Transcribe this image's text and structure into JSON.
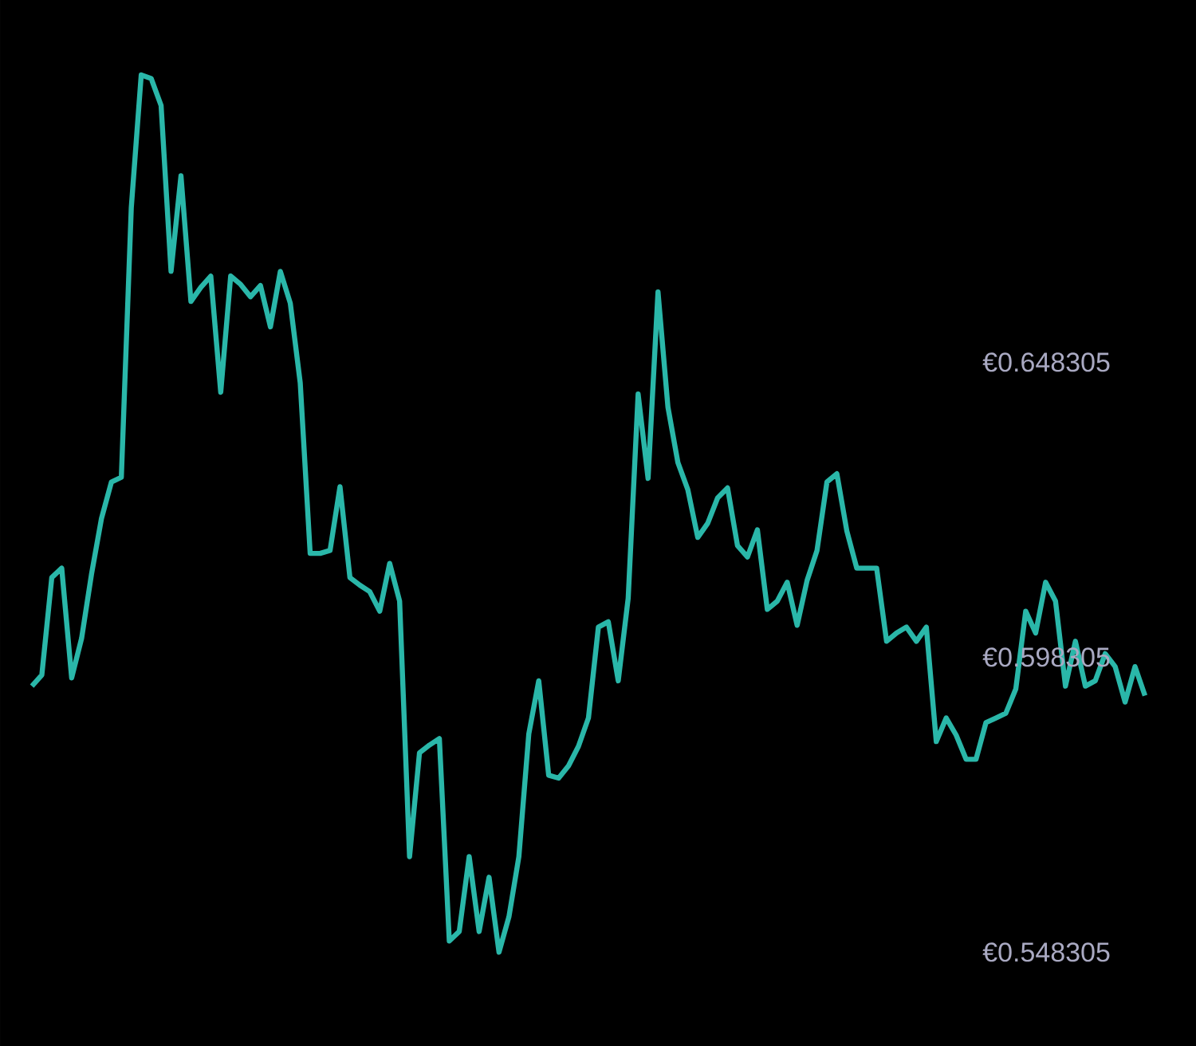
{
  "chart_data": {
    "type": "line",
    "color": "#2ab7a9",
    "tick_labels": "y",
    "marker": "none",
    "categories": [
      null,
      null,
      null,
      null,
      null,
      null,
      null,
      null,
      null,
      null,
      null,
      null,
      null,
      null,
      null,
      null,
      null,
      null,
      null,
      null,
      null,
      null,
      null,
      null,
      null,
      null,
      null,
      null,
      null,
      null,
      null,
      null,
      null,
      null,
      null,
      null,
      null,
      null,
      null,
      null,
      null,
      null,
      null,
      null,
      null,
      null,
      null,
      null,
      null,
      null,
      null,
      null,
      null,
      null,
      null,
      null,
      null,
      null,
      null,
      null,
      null,
      null,
      null,
      null,
      null,
      null,
      null,
      null,
      null,
      null,
      null,
      null,
      null,
      null,
      null,
      null,
      null,
      null,
      null,
      null,
      null,
      null,
      null,
      null,
      null,
      null,
      null,
      null,
      null,
      null,
      null,
      null,
      null,
      null,
      null,
      null,
      null,
      null,
      null,
      null,
      null,
      null,
      null,
      null,
      null,
      null,
      null,
      null,
      null,
      null,
      null,
      null,
      null
    ],
    "values": [
      0.5934,
      0.5953,
      0.6118,
      0.6134,
      0.5948,
      0.6015,
      0.6124,
      0.6218,
      0.628,
      0.6288,
      0.6745,
      0.697,
      0.6964,
      0.6918,
      0.6637,
      0.6799,
      0.6586,
      0.661,
      0.6629,
      0.6432,
      0.6629,
      0.6615,
      0.6594,
      0.6613,
      0.6543,
      0.6637,
      0.6583,
      0.6448,
      0.6159,
      0.6159,
      0.6164,
      0.6272,
      0.6118,
      0.6105,
      0.6094,
      0.6061,
      0.6142,
      0.6078,
      0.5645,
      0.5821,
      0.5834,
      0.5845,
      0.5502,
      0.5518,
      0.5645,
      0.5518,
      0.561,
      0.5483,
      0.5543,
      0.5645,
      0.5853,
      0.5943,
      0.5783,
      0.5778,
      0.5799,
      0.5832,
      0.588,
      0.6034,
      0.6043,
      0.5943,
      0.6083,
      0.6429,
      0.6286,
      0.6602,
      0.6407,
      0.6313,
      0.6267,
      0.6186,
      0.621,
      0.6253,
      0.627,
      0.6172,
      0.6153,
      0.6199,
      0.6064,
      0.6078,
      0.611,
      0.6037,
      0.6113,
      0.6164,
      0.628,
      0.6294,
      0.6197,
      0.6134,
      0.6134,
      0.6134,
      0.601,
      0.6024,
      0.6034,
      0.601,
      0.6034,
      0.584,
      0.588,
      0.5851,
      0.581,
      0.581,
      0.5872,
      0.588,
      0.5888,
      0.5929,
      0.6061,
      0.6024,
      0.611,
      0.6078,
      0.5934,
      0.601,
      0.5934,
      0.5943,
      0.5989,
      0.5967,
      0.5907,
      0.5967,
      0.5918
    ],
    "ylim": [
      0.5324,
      0.7097
    ],
    "yticks": [
      {
        "value": 0.648305,
        "label": "€0.648305"
      },
      {
        "value": 0.598305,
        "label": "€0.598305"
      },
      {
        "value": 0.548305,
        "label": "€0.548305"
      }
    ]
  }
}
